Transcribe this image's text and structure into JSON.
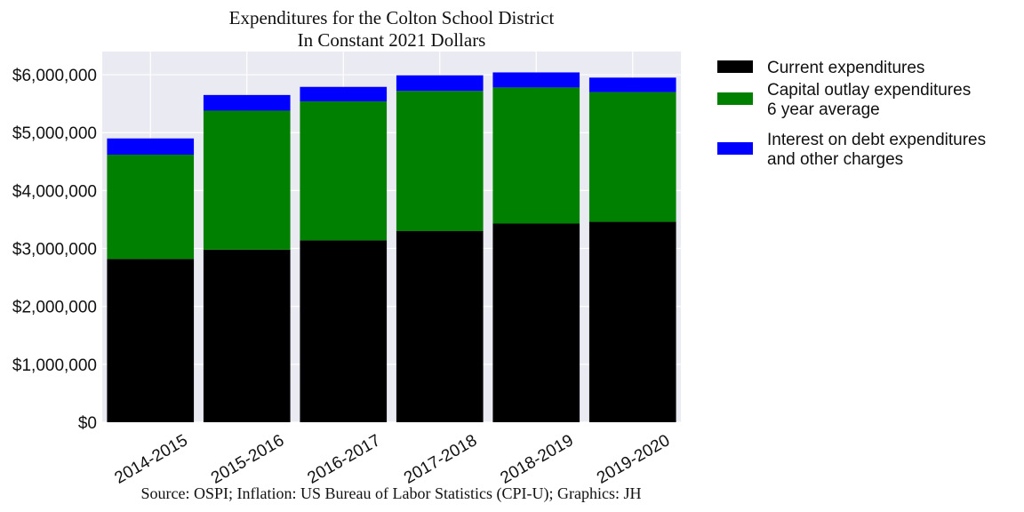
{
  "chart_data": {
    "type": "bar",
    "stacked": true,
    "title": [
      "Expenditures for the Colton School District",
      "In Constant 2021 Dollars"
    ],
    "source": "Source: OSPI; Inflation: US Bureau of Labor Statistics (CPI-U); Graphics: JH",
    "categories": [
      "2014-2015",
      "2015-2016",
      "2016-2017",
      "2017-2018",
      "2018-2019",
      "2019-2020"
    ],
    "series": [
      {
        "name": [
          "Current expenditures"
        ],
        "color": "#000000",
        "values": [
          2820000,
          2980000,
          3140000,
          3300000,
          3430000,
          3460000
        ]
      },
      {
        "name": [
          "Capital outlay expenditures",
          "6 year average"
        ],
        "color": "#008000",
        "values": [
          1800000,
          2400000,
          2400000,
          2420000,
          2350000,
          2240000
        ]
      },
      {
        "name": [
          "Interest on debt expenditures",
          "and other charges"
        ],
        "color": "#0000ff",
        "values": [
          280000,
          270000,
          250000,
          270000,
          260000,
          250000
        ]
      }
    ],
    "ylim": [
      0,
      6400000
    ],
    "yticks": [
      0,
      1000000,
      2000000,
      3000000,
      4000000,
      5000000,
      6000000
    ],
    "ytick_labels": [
      "$0",
      "$1,000,000",
      "$2,000,000",
      "$3,000,000",
      "$4,000,000",
      "$5,000,000",
      "$6,000,000"
    ],
    "grid": true,
    "legend_position": "outside-right",
    "background_color": "#eaeaf2"
  }
}
